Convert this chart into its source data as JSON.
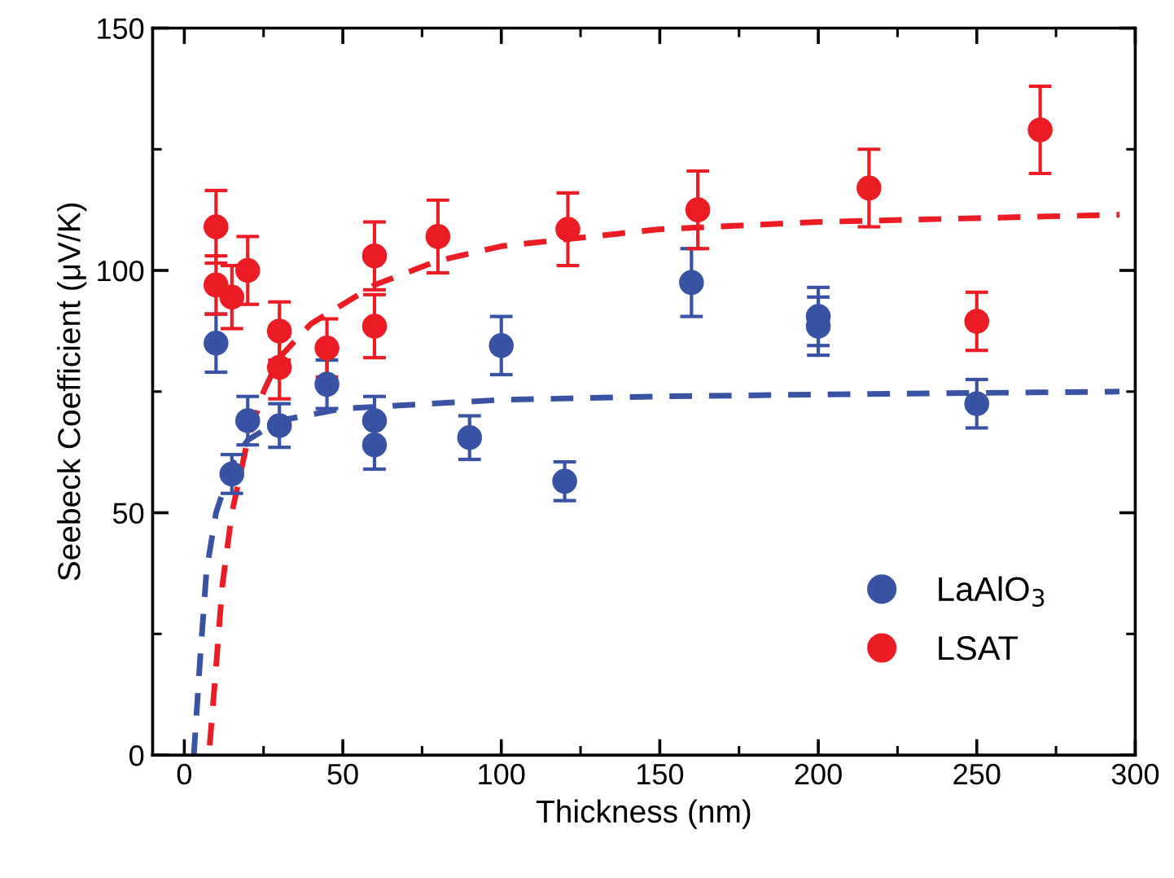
{
  "chart_data": {
    "type": "scatter",
    "xlabel": "Thickness (nm)",
    "ylabel": "Seebeck Coefficient (μV/K)",
    "xlim": [
      -10,
      300
    ],
    "xticks": [
      0,
      50,
      100,
      150,
      200,
      250,
      300
    ],
    "ylim": [
      0,
      150
    ],
    "yticks": [
      0,
      50,
      100,
      150
    ],
    "grid": false,
    "legend": "bottom right",
    "marker": "circle",
    "series": [
      {
        "name": "LaAlO$_{3}$",
        "color": "#3953a4",
        "x": [
          10,
          15,
          20,
          30,
          45,
          60,
          60,
          90,
          100,
          120,
          160,
          200,
          200,
          250
        ],
        "values": [
          85,
          58,
          69,
          68,
          76.5,
          69,
          64,
          65.5,
          84.5,
          56.5,
          97.5,
          90.5,
          88.5,
          72.5
        ],
        "errors": [
          6,
          4,
          5,
          4.5,
          5,
          5,
          5,
          4.5,
          6,
          4,
          7,
          6,
          6,
          5
        ]
      },
      {
        "name": "LSAT",
        "color": "#ec1c24",
        "x": [
          10,
          10,
          15,
          20,
          30,
          30,
          45,
          60,
          60,
          80,
          121,
          162,
          216,
          250,
          270
        ],
        "values": [
          109,
          97,
          94.5,
          100,
          87.5,
          80,
          84,
          103,
          88.5,
          107,
          108.5,
          112.5,
          117,
          89.5,
          129
        ],
        "errors": [
          7.5,
          6,
          6.5,
          7,
          6,
          6.5,
          6,
          7,
          6.5,
          7.5,
          7.5,
          8,
          8,
          6,
          9
        ]
      },
      {
        "color": "#3953a4",
        "type": "line",
        "line_style": "dashed",
        "marker": "none",
        "x": [
          3,
          5,
          7,
          10,
          15,
          20,
          30,
          50,
          100,
          150,
          200,
          295
        ],
        "values": [
          0,
          20,
          38,
          50,
          60,
          65,
          69,
          71.5,
          73.3,
          74,
          74.4,
          75
        ]
      },
      {
        "color": "#ec1c24",
        "type": "line",
        "line_style": "dashed",
        "marker": "none",
        "x": [
          8,
          10,
          12,
          15,
          20,
          25,
          30,
          40,
          60,
          80,
          100,
          150,
          200,
          295
        ],
        "values": [
          2,
          18,
          35,
          50,
          65,
          75,
          82,
          89,
          97,
          102,
          105,
          108.5,
          110,
          111.5
        ]
      }
    ]
  }
}
